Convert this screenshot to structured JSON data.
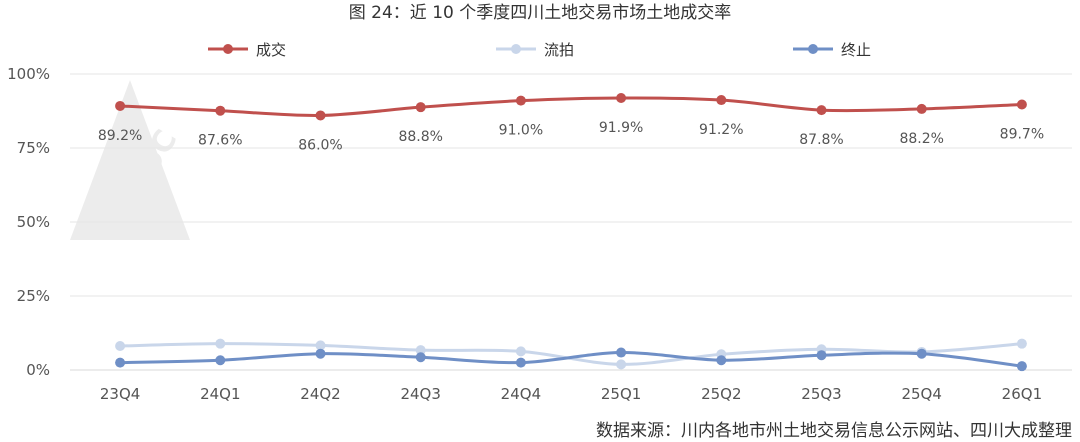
{
  "chart_data": {
    "type": "line",
    "title": "图 24：近 10 个季度四川土地交易市场土地成交率",
    "categories": [
      "23Q4",
      "24Q1",
      "24Q2",
      "24Q3",
      "24Q4",
      "25Q1",
      "25Q2",
      "25Q3",
      "25Q4",
      "26Q1"
    ],
    "series": [
      {
        "name": "成交",
        "color": "#C0504D",
        "values": [
          89.2,
          87.6,
          86.0,
          88.8,
          91.0,
          91.9,
          91.2,
          87.8,
          88.2,
          89.7
        ],
        "labels": [
          "89.2%",
          "87.6%",
          "86.0%",
          "88.8%",
          "91.0%",
          "91.9%",
          "91.2%",
          "87.8%",
          "88.2%",
          "89.7%"
        ]
      },
      {
        "name": "流拍",
        "color": "#C9D6EA",
        "values": [
          8.1,
          8.9,
          8.3,
          6.7,
          6.3,
          1.9,
          5.3,
          7.0,
          6.1,
          8.9
        ]
      },
      {
        "name": "终止",
        "color": "#6F8FC6",
        "values": [
          2.5,
          3.3,
          5.5,
          4.3,
          2.5,
          5.9,
          3.3,
          5.0,
          5.5,
          1.3
        ]
      }
    ],
    "y_ticks": [
      "0%",
      "25%",
      "50%",
      "75%",
      "100%"
    ],
    "ylim": [
      0,
      100
    ],
    "grid": true,
    "legend": "top",
    "source": "数据来源：川内各地市州土地交易信息公示网站、四川大成整理",
    "watermark": "SCDC"
  }
}
